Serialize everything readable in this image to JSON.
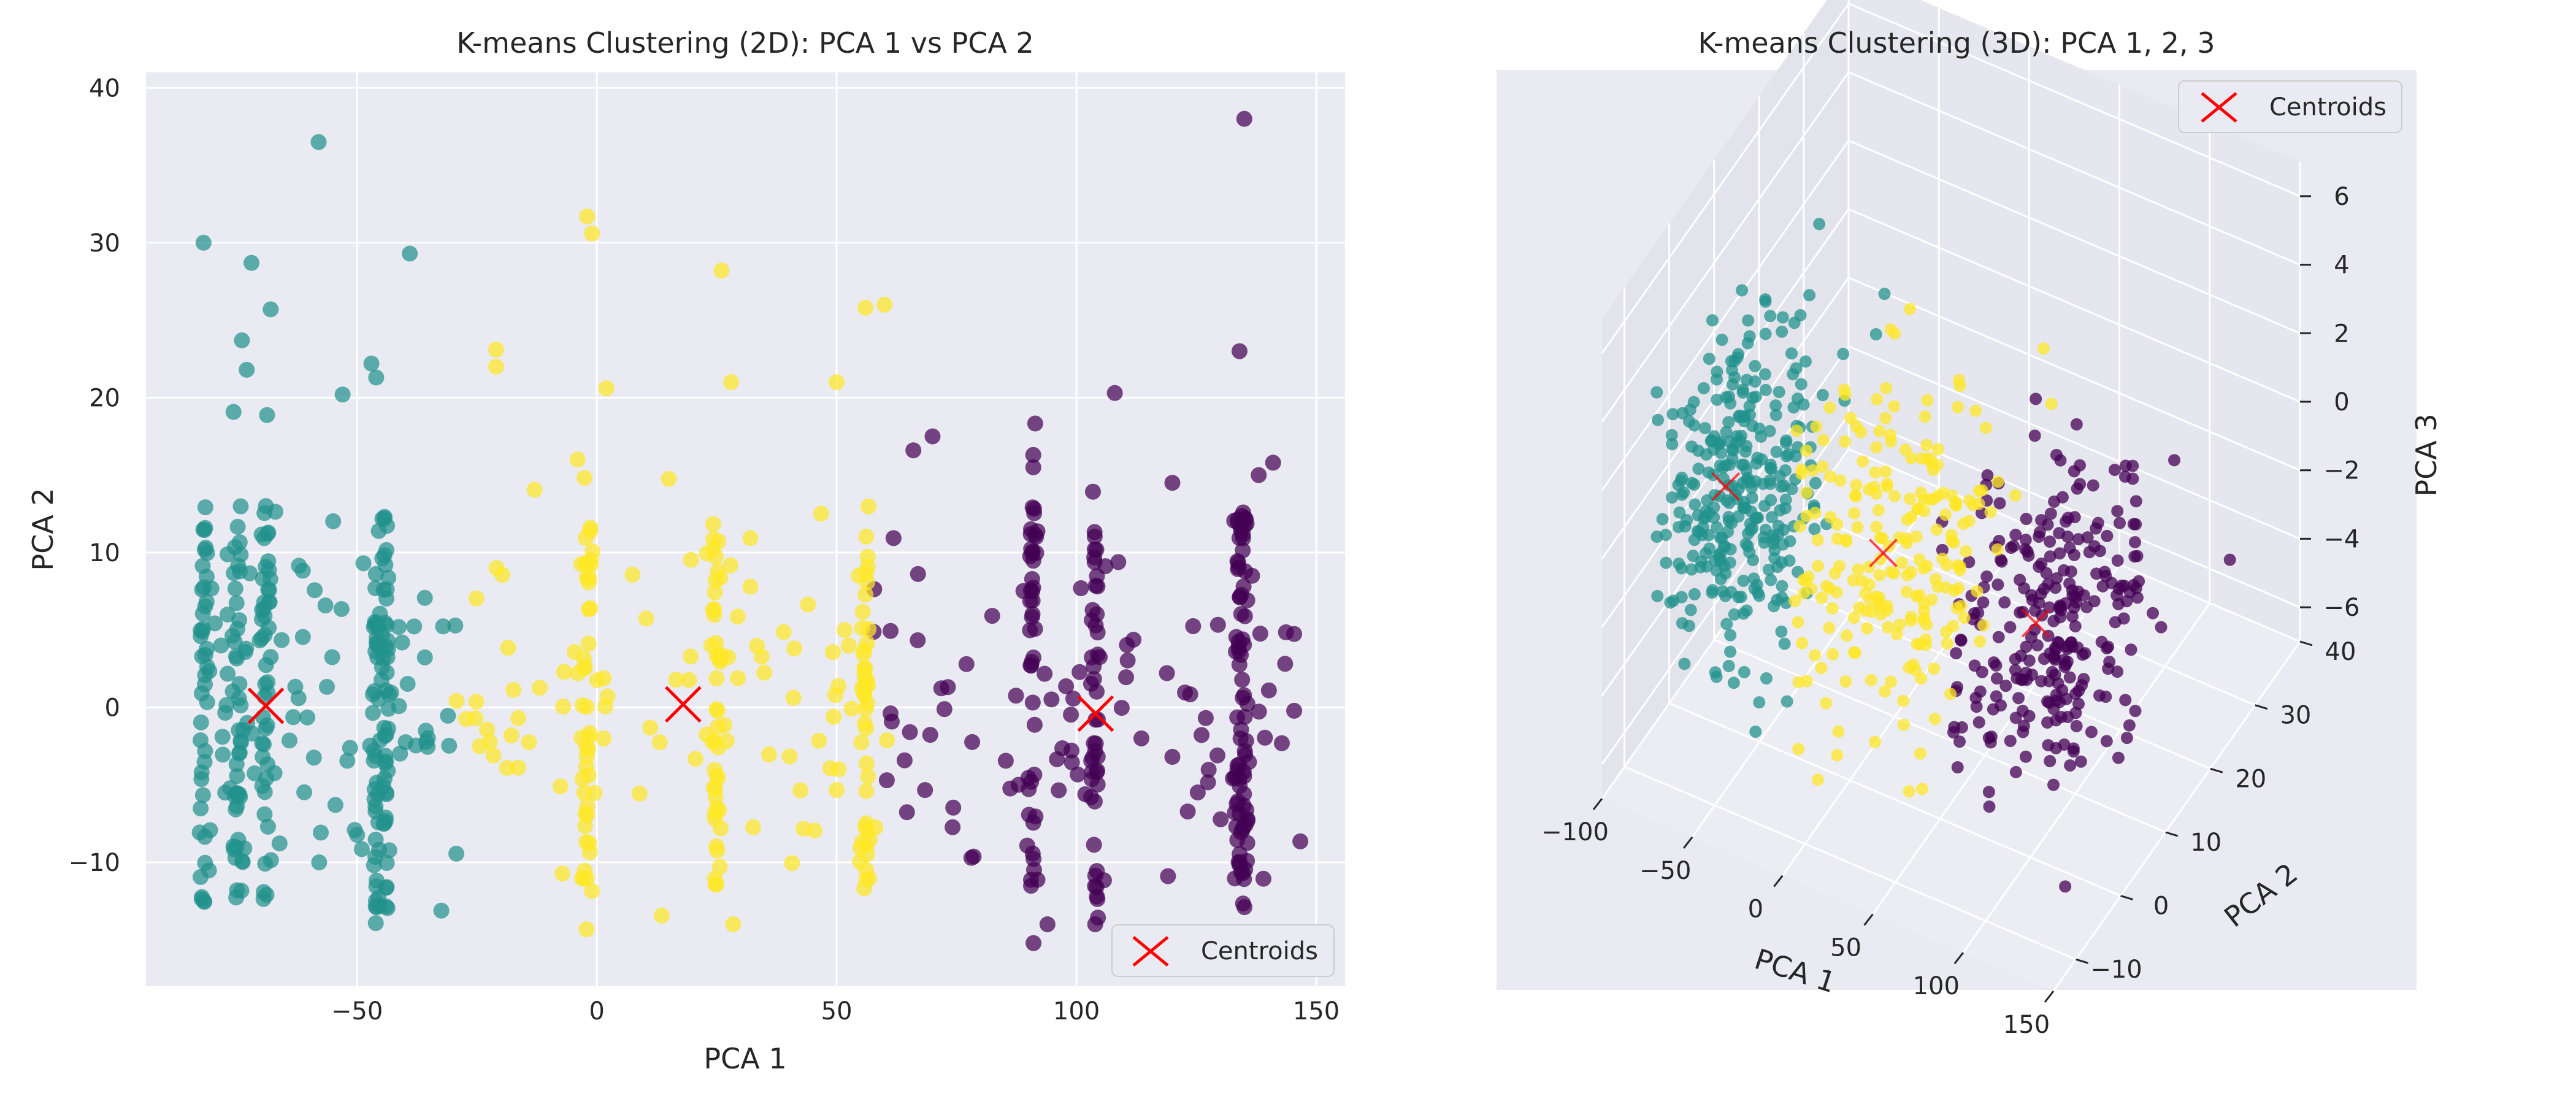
{
  "chart_data": [
    {
      "type": "scatter",
      "title": "K-means Clustering (2D): PCA 1 vs PCA 2",
      "xlabel": "PCA 1",
      "ylabel": "PCA 2",
      "xlim": [
        -94,
        156
      ],
      "ylim": [
        -18,
        41
      ],
      "xticks": [
        -50,
        0,
        50,
        100,
        150
      ],
      "yticks": [
        -10,
        0,
        10,
        20,
        30,
        40
      ],
      "grid": true,
      "legend": {
        "position": "bottom-right",
        "entries": [
          "Centroids"
        ]
      },
      "series": [
        {
          "cluster": 0,
          "color": "#440154",
          "x_range": [
            57,
            148
          ],
          "y_range": [
            -15.5,
            38
          ],
          "columns_x": [
            91,
            104,
            134,
            135
          ],
          "outliers": [
            [
              135,
              38
            ],
            [
              134,
              23
            ],
            [
              108,
              20.3
            ],
            [
              70,
              17.5
            ],
            [
              66,
              16.6
            ],
            [
              91,
              16.3
            ],
            [
              91,
              15.5
            ],
            [
              141,
              15.8
            ],
            [
              138,
              15.0
            ],
            [
              120,
              14.5
            ]
          ]
        },
        {
          "cluster": 1,
          "color": "#21918c",
          "x_range": [
            -82,
            -28
          ],
          "y_range": [
            -14.5,
            36.5
          ],
          "columns_x": [
            -82,
            -75,
            -69,
            -46,
            -44
          ],
          "outliers": [
            [
              -58,
              36.5
            ],
            [
              -82,
              30
            ],
            [
              -72,
              28.7
            ],
            [
              -39,
              29.3
            ],
            [
              -68,
              25.7
            ],
            [
              -74,
              23.7
            ],
            [
              -73,
              21.8
            ],
            [
              -47,
              22.2
            ],
            [
              -46,
              21.3
            ],
            [
              -53,
              20.2
            ]
          ]
        },
        {
          "cluster": 2,
          "color": "#fde725",
          "x_range": [
            -30,
            62
          ],
          "y_range": [
            -15,
            32
          ],
          "columns_x": [
            -2,
            25,
            56
          ],
          "outliers": [
            [
              -2,
              31.7
            ],
            [
              -1,
              30.6
            ],
            [
              26,
              28.2
            ],
            [
              56,
              25.8
            ],
            [
              60,
              26.0
            ],
            [
              -21,
              23.1
            ],
            [
              -21,
              22.0
            ],
            [
              28,
              21.0
            ],
            [
              2,
              20.6
            ],
            [
              50,
              21.0
            ]
          ]
        }
      ],
      "centroids": [
        {
          "x": -69,
          "y": 0.1,
          "marker": "x",
          "color": "#ff0000"
        },
        {
          "x": 18,
          "y": 0.2,
          "marker": "x",
          "color": "#ff0000"
        },
        {
          "x": 104,
          "y": -0.4,
          "marker": "x",
          "color": "#ff0000"
        }
      ]
    },
    {
      "type": "scatter",
      "projection": "3d",
      "title": "K-means Clustering (3D): PCA 1, 2, 3",
      "xlabel": "PCA 1",
      "ylabel": "PCA 2",
      "zlabel": "PCA 3",
      "xlim": [
        -100,
        150
      ],
      "ylim": [
        -15,
        40
      ],
      "zlim": [
        -7,
        7
      ],
      "xticks": [
        -100,
        -50,
        0,
        50,
        100,
        150
      ],
      "yticks": [
        -10,
        0,
        10,
        20,
        30,
        40
      ],
      "zticks": [
        -6,
        -4,
        -2,
        0,
        2,
        4,
        6
      ],
      "grid": true,
      "legend": {
        "position": "top-right",
        "entries": [
          "Centroids"
        ]
      },
      "series": [
        {
          "cluster": 0,
          "color": "#440154"
        },
        {
          "cluster": 1,
          "color": "#21918c"
        },
        {
          "cluster": 2,
          "color": "#fde725"
        }
      ],
      "centroids": [
        {
          "x": -69,
          "y": 0.1,
          "z": 0.0,
          "marker": "x",
          "color": "#ff0000"
        },
        {
          "x": 18,
          "y": 0.2,
          "z": 0.0,
          "marker": "x",
          "color": "#ff0000"
        },
        {
          "x": 104,
          "y": -0.4,
          "z": 0.0,
          "marker": "x",
          "color": "#ff0000"
        }
      ]
    }
  ]
}
